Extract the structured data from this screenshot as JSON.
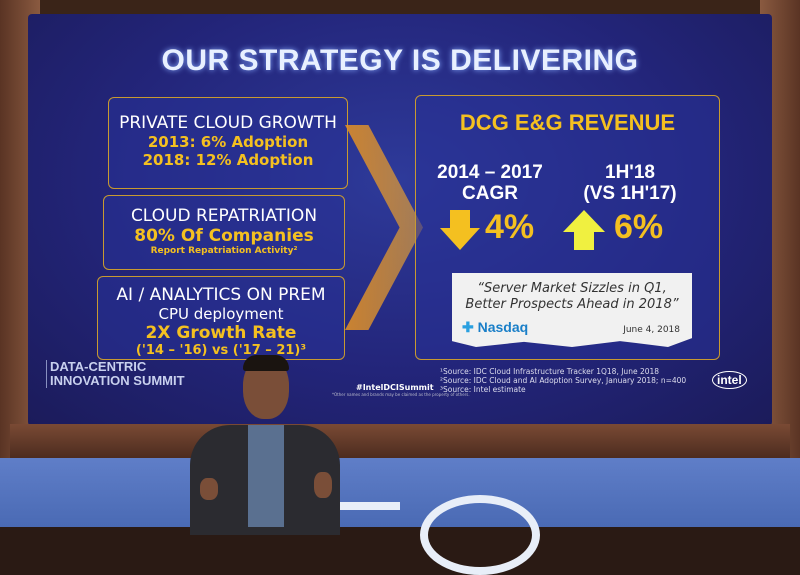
{
  "slide": {
    "title": "OUR STRATEGY IS DELIVERING",
    "left_boxes": [
      {
        "heading": "PRIVATE CLOUD GROWTH",
        "lines": [
          "2013: 6% Adoption",
          "2018: 12% Adoption"
        ]
      },
      {
        "heading": "CLOUD REPATRIATION",
        "lines": [
          "80% Of Companies"
        ],
        "note": "Report Repatriation Activity²"
      },
      {
        "heading": "AI / ANALYTICS ON PREM",
        "sub": "CPU deployment",
        "lines": [
          "2X Growth Rate",
          "('14 – '16) vs ('17 – 21)³"
        ]
      }
    ],
    "revenue": {
      "title": "DCG E&G REVENUE",
      "metrics": [
        {
          "label": "2014 – 2017\nCAGR",
          "label_lines": [
            "2014 – 2017",
            "CAGR"
          ],
          "value": "4%",
          "direction": "down",
          "arrow_color": "#f4c020"
        },
        {
          "label_lines": [
            "1H'18",
            "(VS 1H'17)"
          ],
          "value": "6%",
          "direction": "up",
          "arrow_color": "#f0f040"
        }
      ],
      "quote": {
        "text_lines": [
          "“Server Market Sizzles in Q1,",
          "Better Prospects Ahead in 2018”"
        ],
        "source": "Nasdaq",
        "date": "June 4, 2018"
      }
    },
    "event_logo": [
      "DATA-CENTRIC",
      "INNOVATION SUMMIT"
    ],
    "hashtag": "#IntelDCISummit",
    "disclaimer": "*Other names and brands may be claimed as the property of others.",
    "sources": [
      "¹Source: IDC Cloud Infrastructure Tracker 1Q18, June 2018",
      "²Source: IDC Cloud and AI Adoption Survey, January 2018; n=400",
      "³Source: Intel estimate"
    ],
    "brand_logo": "intel"
  },
  "colors": {
    "accent": "#f4c020",
    "screen": "#23257a",
    "stage": "#5f7ec8"
  }
}
